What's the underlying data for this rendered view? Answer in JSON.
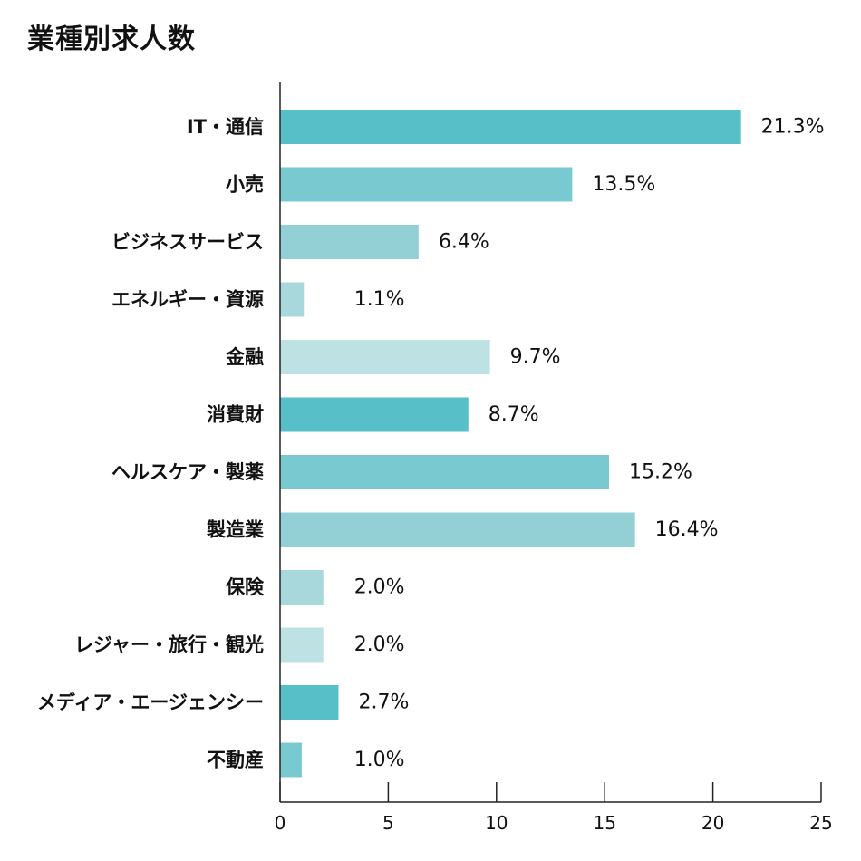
{
  "chart_data": {
    "type": "bar",
    "orientation": "horizontal",
    "title": "業種別求人数",
    "categories": [
      "IT・通信",
      "小売",
      "ビジネスサービス",
      "エネルギー・資源",
      "金融",
      "消費財",
      "ヘルスケア・製薬",
      "製造業",
      "保険",
      "レジャー・旅行・観光",
      "メディア・エージェンシー",
      "不動産"
    ],
    "values": [
      21.3,
      13.5,
      6.4,
      1.1,
      9.7,
      8.7,
      15.2,
      16.4,
      2.0,
      2.0,
      2.7,
      1.0
    ],
    "value_labels": [
      "21.3%",
      "13.5%",
      "6.4%",
      "1.1%",
      "9.7%",
      "8.7%",
      "15.2%",
      "16.4%",
      "2.0%",
      "2.0%",
      "2.7%",
      "1.0%"
    ],
    "bar_colors": [
      "#56bfc8",
      "#78c9d0",
      "#92d0d6",
      "#a8d8dc",
      "#bee2e4",
      "#56bfc8",
      "#78c9d0",
      "#92d0d6",
      "#a8d8dc",
      "#bee2e4",
      "#56bfc8",
      "#78c9d0"
    ],
    "xlim": [
      0,
      25
    ],
    "xticks": [
      0,
      5,
      10,
      15,
      20,
      25
    ],
    "xlabel": "",
    "ylabel": "",
    "grid": false,
    "legend": "none"
  }
}
